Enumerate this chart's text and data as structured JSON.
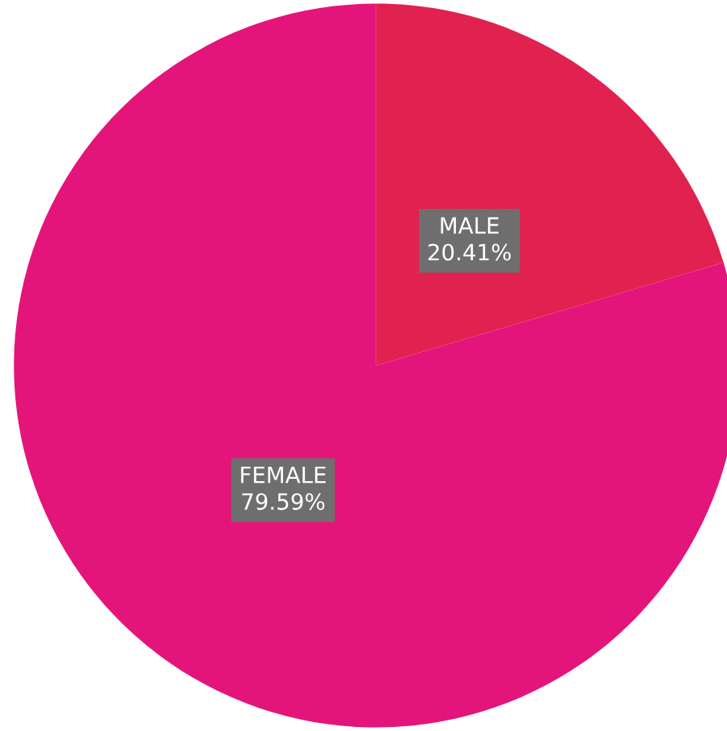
{
  "chart_data": {
    "type": "pie",
    "categories": [
      "MALE",
      "FEMALE"
    ],
    "values": [
      20.41,
      79.59
    ],
    "value_labels": [
      "20.41%",
      "79.59%"
    ],
    "colors": [
      "#e1214f",
      "#e3157a"
    ],
    "legend": false
  }
}
